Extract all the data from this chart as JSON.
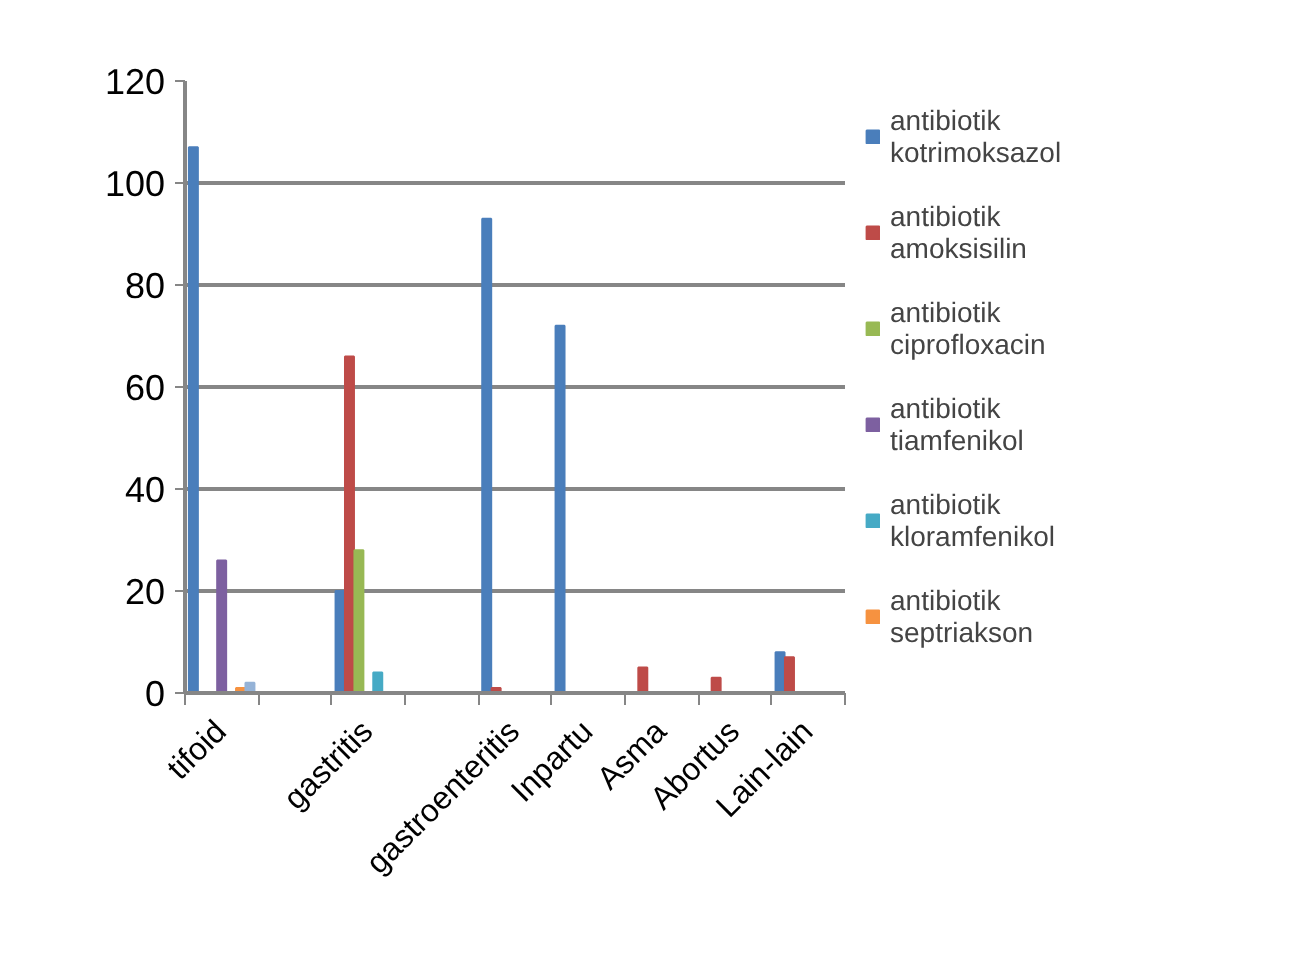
{
  "chart_data": {
    "type": "bar",
    "categories": [
      "tifoid",
      null,
      "gastritis",
      null,
      "gastroenteritis",
      "Inpartu",
      "Asma",
      "Abortus",
      "Lain-lain"
    ],
    "series": [
      {
        "name": "antibiotik kotrimoksazol",
        "color": "#4a7ebb",
        "values": [
          107,
          0,
          20,
          0,
          93,
          72,
          0,
          0,
          8
        ]
      },
      {
        "name": "antibiotik amoksisilin",
        "color": "#be4b48",
        "values": [
          0,
          0,
          66,
          0,
          1,
          0,
          5,
          3,
          7
        ]
      },
      {
        "name": "antibiotik ciprofloxacin",
        "color": "#98b954",
        "values": [
          0,
          0,
          28,
          0,
          0,
          0,
          0,
          0,
          0
        ]
      },
      {
        "name": "antibiotik tiamfenikol",
        "color": "#7d60a0",
        "values": [
          26,
          0,
          0,
          0,
          0,
          0,
          0,
          0,
          0
        ]
      },
      {
        "name": "antibiotik kloramfenikol",
        "color": "#46aac5",
        "values": [
          0,
          0,
          4,
          0,
          0,
          0,
          0,
          0,
          0
        ]
      },
      {
        "name": "antibiotik septriakson",
        "color": "#f69240",
        "values": [
          1,
          0,
          0,
          0,
          0,
          0,
          0,
          0,
          0
        ]
      },
      {
        "color": "#95b3d7",
        "values": [
          2,
          0,
          0,
          0,
          0,
          0,
          0,
          0,
          0
        ]
      }
    ],
    "ylim": [
      0,
      120
    ],
    "yticks": [
      0,
      20,
      40,
      60,
      80,
      100,
      120
    ],
    "grid": "y",
    "legend": "right"
  }
}
